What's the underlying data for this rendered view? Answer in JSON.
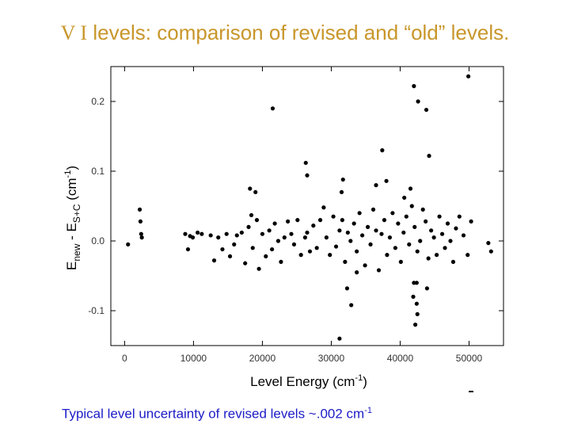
{
  "title": {
    "prefix": "V I",
    "text": "levels: comparison of revised and “old” levels."
  },
  "footnote": {
    "text": "Typical level uncertainty of revised levels ~.002 cm",
    "sup": "-1"
  },
  "chart_data": {
    "type": "scatter",
    "xlabel": "Level Energy (cm-1)",
    "ylabel": "Enew - ES+C (cm-1)",
    "xlim": [
      -2000,
      55000
    ],
    "ylim": [
      -0.15,
      0.25
    ],
    "xticks": [
      0,
      10000,
      20000,
      30000,
      40000,
      50000
    ],
    "yticks": [
      -0.1,
      0.0,
      0.1,
      0.2
    ],
    "ytick_labels": [
      "-0.1",
      "0.0",
      "0.1",
      "0.2"
    ],
    "marker_color": "#000000",
    "series": [
      {
        "x": [
          500,
          2200,
          2300,
          2400,
          2500,
          8800,
          9200,
          9500,
          9900,
          10600,
          11200,
          12500,
          13000,
          13600,
          14200,
          14800,
          15300,
          15900,
          16300,
          17000,
          17500,
          18000,
          18400,
          18600,
          19200,
          19500,
          20000,
          20500,
          21000,
          21400,
          21800,
          22300,
          22700,
          23200,
          23700,
          24200,
          24600,
          25100,
          25600,
          26200,
          26500,
          26900,
          27400,
          27900,
          28400,
          28900,
          29300,
          29800,
          30300,
          30700,
          31200,
          31600,
          32000,
          32400,
          32800,
          33300,
          33700,
          34100,
          34500,
          34900,
          35300,
          35700,
          36100,
          36500,
          36900,
          37300,
          37700,
          38100,
          38500,
          38900,
          39300,
          39700,
          40100,
          40500,
          40900,
          41300,
          41700,
          42100,
          42500,
          42900,
          43300,
          43700,
          44100,
          44500,
          44900,
          45300,
          45700,
          46100,
          46500,
          46900,
          47300,
          47700,
          48100,
          48600,
          49200,
          49800,
          50300,
          52800,
          53200,
          21500,
          26300,
          26500,
          37400,
          36500,
          38000,
          40600,
          41500,
          42000,
          42600,
          43800,
          44200,
          42500,
          42200,
          42400,
          41900,
          49900,
          19000,
          18200,
          31200,
          31700,
          32300,
          32900,
          33700,
          31500,
          42000,
          42400,
          43900
        ],
        "y": [
          -0.005,
          0.045,
          0.028,
          0.01,
          0.005,
          0.01,
          -0.012,
          0.007,
          0.005,
          0.012,
          0.01,
          0.008,
          -0.028,
          0.005,
          -0.012,
          0.01,
          -0.022,
          -0.005,
          0.008,
          0.012,
          -0.032,
          0.02,
          0.037,
          -0.01,
          0.03,
          -0.04,
          0.01,
          -0.022,
          0.015,
          -0.012,
          0.025,
          0.0,
          -0.03,
          0.005,
          0.028,
          0.01,
          -0.005,
          0.03,
          -0.02,
          0.005,
          0.012,
          -0.015,
          0.022,
          -0.01,
          0.03,
          0.048,
          0.005,
          -0.02,
          0.035,
          -0.008,
          0.015,
          0.03,
          -0.03,
          0.012,
          0.0,
          0.025,
          -0.015,
          0.04,
          0.008,
          -0.035,
          0.02,
          -0.005,
          0.045,
          0.015,
          -0.042,
          0.01,
          0.03,
          -0.02,
          0.005,
          0.04,
          -0.01,
          0.025,
          -0.03,
          0.012,
          0.035,
          -0.005,
          0.05,
          0.02,
          -0.015,
          0.0,
          0.045,
          0.028,
          -0.025,
          0.015,
          0.005,
          -0.02,
          0.035,
          0.01,
          -0.01,
          0.025,
          0.0,
          -0.03,
          0.018,
          0.035,
          0.008,
          -0.02,
          0.028,
          -0.003,
          -0.015,
          0.19,
          0.112,
          0.094,
          0.13,
          0.08,
          0.086,
          0.062,
          0.075,
          0.222,
          0.2,
          0.188,
          0.122,
          -0.105,
          -0.12,
          -0.06,
          -0.08,
          0.236,
          0.07,
          0.075,
          -0.14,
          0.088,
          -0.068,
          -0.092,
          -0.045,
          0.07,
          -0.06,
          -0.09,
          -0.068
        ]
      }
    ]
  }
}
